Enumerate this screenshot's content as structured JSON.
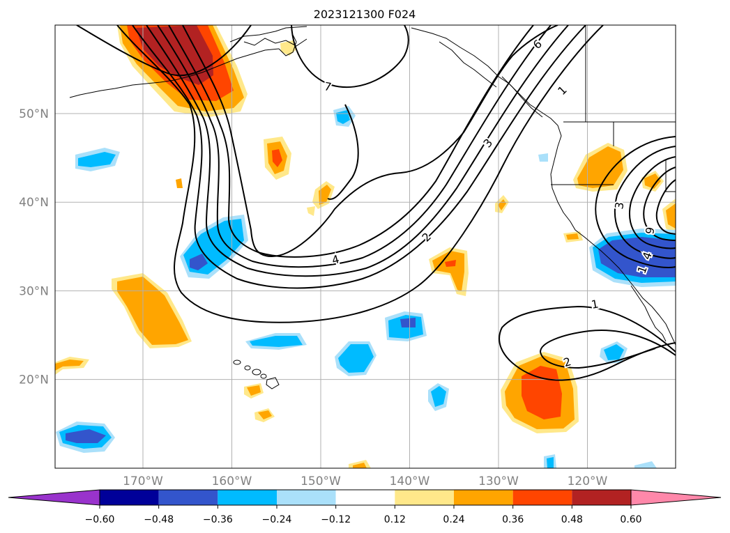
{
  "title": "2023121300 F024",
  "map": {
    "lat_ticks": [
      {
        "value": 50,
        "label": "50°N"
      },
      {
        "value": 40,
        "label": "40°N"
      },
      {
        "value": 30,
        "label": "30°N"
      },
      {
        "value": 20,
        "label": "20°N"
      }
    ],
    "lon_ticks": [
      {
        "value": -170,
        "label": "170°W"
      },
      {
        "value": -160,
        "label": "160°W"
      },
      {
        "value": -150,
        "label": "150°W"
      },
      {
        "value": -140,
        "label": "140°W"
      },
      {
        "value": -130,
        "label": "130°W"
      },
      {
        "value": -120,
        "label": "120°W"
      }
    ],
    "tick_label_color": "#808080",
    "contour_labels": [
      "6",
      "7",
      "1",
      "3",
      "2",
      "4",
      "1",
      "2",
      "3",
      "4",
      "1",
      "9"
    ]
  },
  "colorbar": {
    "levels": [
      "−0.60",
      "−0.48",
      "−0.36",
      "−0.24",
      "−0.12",
      "0.12",
      "0.24",
      "0.36",
      "0.48",
      "0.60"
    ],
    "colors": [
      "#9933cc",
      "#000099",
      "#3355cc",
      "#00bbff",
      "#aae0fa",
      "#ffffff",
      "#ffe88a",
      "#ffa500",
      "#ff4500",
      "#b22222",
      "#ff88aa"
    ]
  }
}
